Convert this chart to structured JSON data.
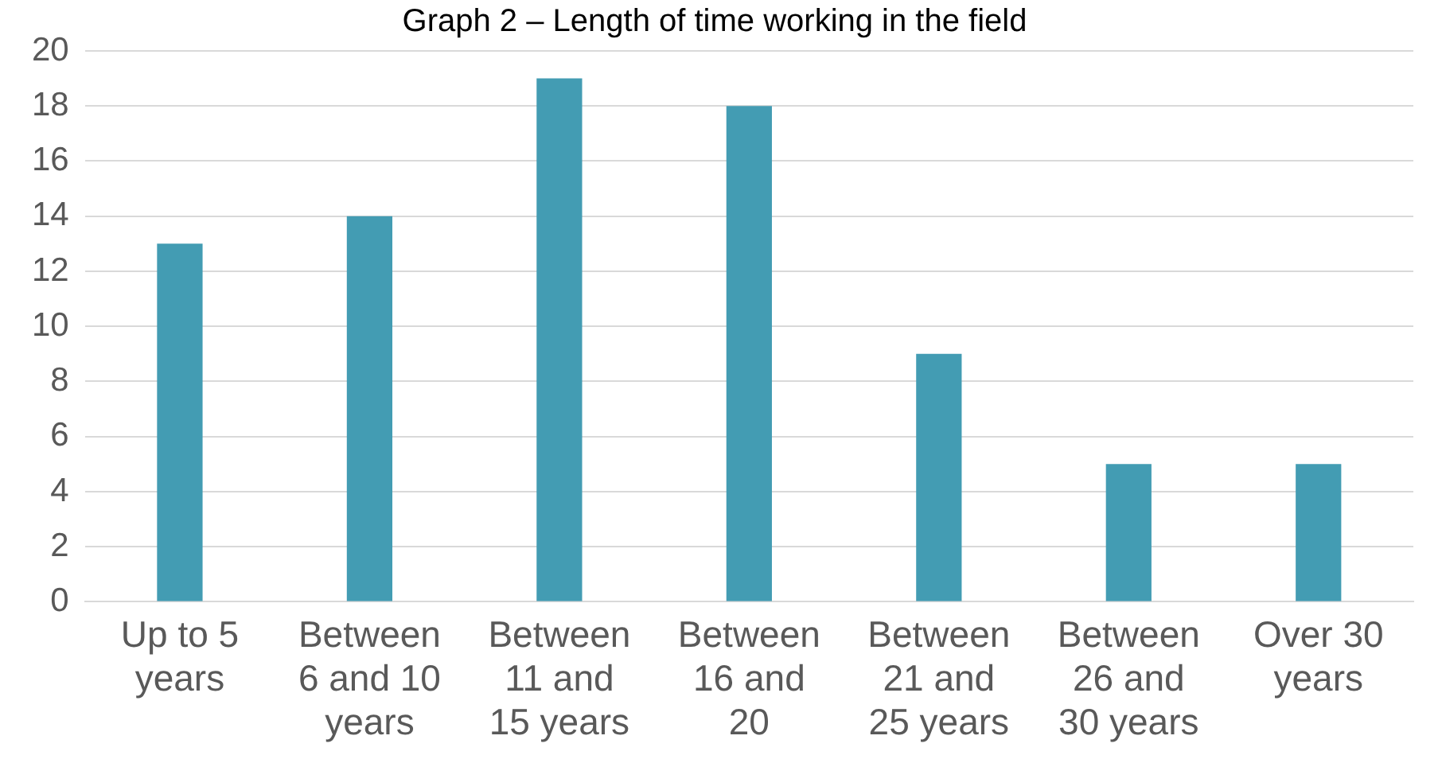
{
  "chart_data": {
    "type": "bar",
    "title": "Graph 2 – Length of time working in the field",
    "categories": [
      "Up to 5 years",
      "Between 6 and 10 years",
      "Between 11 and 15 years",
      "Between 16 and 20",
      "Between 21 and 25 years",
      "Between 26 and 30 years",
      "Over 30 years"
    ],
    "values": [
      13,
      14,
      19,
      18,
      9,
      5,
      5
    ],
    "color": "#439cb3",
    "ylim": [
      0,
      20
    ],
    "yticks": [
      0,
      2,
      4,
      6,
      8,
      10,
      12,
      14,
      16,
      18,
      20
    ],
    "grid": "y",
    "legend": false
  }
}
